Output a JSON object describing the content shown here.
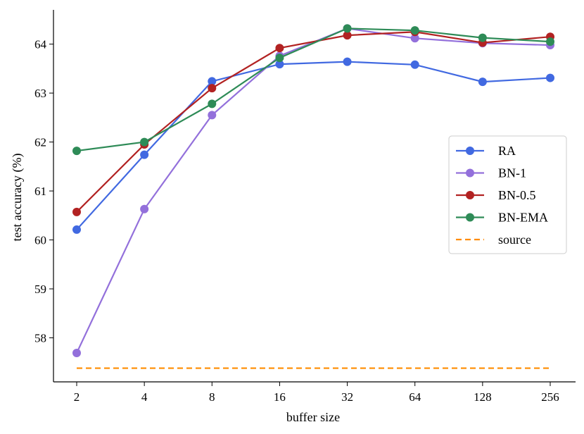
{
  "chart_data": {
    "type": "line",
    "xlabel": "buffer size",
    "ylabel": "test accuracy (%)",
    "categories": [
      "2",
      "4",
      "8",
      "16",
      "32",
      "64",
      "128",
      "256"
    ],
    "yticks": [
      58,
      59,
      60,
      61,
      62,
      63,
      64
    ],
    "ylim": [
      57.1,
      64.7
    ],
    "grid": false,
    "legend_position": "right",
    "series": [
      {
        "name": "RA",
        "color": "#4169e1",
        "style": "solid-marker",
        "values": [
          60.21,
          61.74,
          63.24,
          63.59,
          63.64,
          63.58,
          63.23,
          63.31
        ]
      },
      {
        "name": "BN-1",
        "color": "#9370db",
        "style": "solid-marker",
        "values": [
          57.69,
          60.63,
          62.55,
          63.76,
          64.32,
          64.12,
          64.02,
          63.98
        ]
      },
      {
        "name": "BN-0.5",
        "color": "#b22222",
        "style": "solid-marker",
        "values": [
          60.57,
          61.95,
          63.1,
          63.92,
          64.18,
          64.25,
          64.03,
          64.15
        ]
      },
      {
        "name": "BN-EMA",
        "color": "#2e8b57",
        "style": "solid-marker",
        "values": [
          61.82,
          62.0,
          62.78,
          63.72,
          64.32,
          64.28,
          64.13,
          64.05
        ]
      },
      {
        "name": "source",
        "color": "#ff8c00",
        "style": "dashed",
        "values": [
          57.38,
          57.38,
          57.38,
          57.38,
          57.38,
          57.38,
          57.38,
          57.38
        ]
      }
    ]
  }
}
